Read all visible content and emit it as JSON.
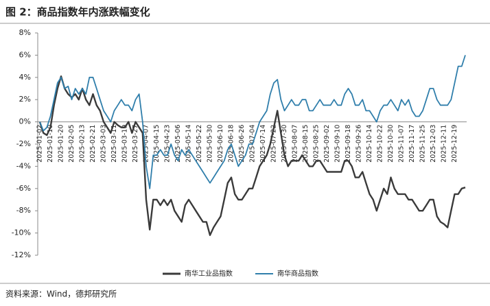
{
  "chart_data": {
    "type": "line",
    "title": "图 2：商品指数年内涨跌幅变化",
    "source": "资料来源：Wind，德邦研究所",
    "categories": [
      "2025-01-02",
      null,
      null,
      "2025-01-10",
      null,
      null,
      "2025-01-20",
      null,
      null,
      "2025-02-05",
      null,
      null,
      "2025-02-13",
      null,
      null,
      "2025-02-21",
      null,
      null,
      "2025-03-03",
      null,
      null,
      "2025-03-11",
      null,
      null,
      "2025-03-19",
      null,
      null,
      "2025-03-27",
      null,
      null,
      "2025-04-07",
      null,
      null,
      "2025-04-15",
      null,
      null,
      "2025-04-23",
      null,
      null,
      "2025-05-06",
      null,
      null,
      "2025-05-14",
      null,
      null,
      "2025-05-22",
      null,
      null,
      "2025-05-30",
      null,
      null,
      "2025-06-10",
      null,
      null,
      "2025-06-18",
      null,
      null,
      "2025-06-26",
      null,
      null,
      "2025-07-04",
      null,
      null,
      "2025-07-14",
      null,
      null,
      "2025-07-22",
      null,
      null,
      "2025-07-30",
      null,
      null,
      "2025-08-07",
      null,
      null,
      "2025-08-15",
      null,
      null,
      "2025-08-25",
      null,
      null,
      "2025-09-02",
      null,
      null,
      "2025-09-10",
      null,
      null,
      "2025-09-18",
      null,
      null,
      "2025-09-26",
      null,
      null,
      "2025-10-14",
      null,
      null,
      "2025-10-22",
      null,
      null,
      "2025-10-30",
      null,
      null,
      "2025-11-07",
      null,
      null,
      "2025-11-17",
      null,
      null,
      "2025-11-25",
      null,
      null,
      "2025-12-03",
      null,
      null,
      "2025-12-11",
      null,
      null,
      "2025-12-19",
      null,
      null,
      null
    ],
    "series": [
      {
        "name": "南华工业品指数",
        "color": "#3a3a3a",
        "values": [
          0,
          -1,
          -1.2,
          -0.5,
          1.5,
          3,
          4.1,
          3,
          2.5,
          2.2,
          2.5,
          2,
          3,
          2,
          1.5,
          2.5,
          1.5,
          1,
          0,
          -0.5,
          -1,
          0,
          -0.3,
          -0.5,
          -0.5,
          0,
          -1,
          0,
          -0.5,
          -1,
          -7,
          -9.7,
          -7,
          -7,
          -7.5,
          -7,
          -7.5,
          -7,
          -8,
          -8.5,
          -9,
          -7.5,
          -7,
          -7.5,
          -8,
          -8.5,
          -9,
          -9,
          -10.2,
          -9.5,
          -9,
          -8.5,
          -7,
          -5.5,
          -5,
          -6.5,
          -7,
          -7,
          -6.5,
          -6,
          -6,
          -5,
          -4,
          -3.5,
          -3,
          -2,
          -0.5,
          1,
          -1,
          -3,
          -4,
          -3.5,
          -3.5,
          -3.5,
          -3,
          -3.5,
          -4,
          -4,
          -3.5,
          -3.5,
          -4,
          -4.5,
          -4.5,
          -4.5,
          -4.5,
          -4.5,
          -3.5,
          -3.5,
          -4,
          -5,
          -5,
          -4.5,
          -5.5,
          -6.5,
          -7,
          -8,
          -7,
          -6,
          -6.5,
          -5,
          -6,
          -6.5,
          -6.5,
          -6.5,
          -7,
          -7,
          -7.5,
          -8,
          -8,
          -7.5,
          -7,
          -7,
          -8.5,
          -9,
          -9.2,
          -9.5,
          -8,
          -6.5,
          -6.5,
          -6,
          -5.9
        ]
      },
      {
        "name": "南华商品指数",
        "color": "#2f7eab",
        "values": [
          0,
          -0.8,
          -0.5,
          0.5,
          2,
          3.5,
          4,
          3,
          3.2,
          2,
          3,
          2.5,
          3,
          2.5,
          4,
          4,
          3,
          2,
          1,
          0.5,
          0,
          1,
          1.5,
          2,
          1.5,
          1.5,
          1,
          2,
          2.5,
          0,
          -4,
          -6,
          -3,
          -3,
          -2.5,
          -3,
          -3,
          -2,
          -3,
          -3.5,
          -2.5,
          -3,
          -2.5,
          -3,
          -3.5,
          -4,
          -4.5,
          -5,
          -5.5,
          -5,
          -4.5,
          -4,
          -3.5,
          -2.5,
          -2,
          -3,
          -4,
          -3.5,
          -3,
          -2,
          -2,
          -1,
          0,
          0.5,
          1,
          2.5,
          3.5,
          3.8,
          2,
          1,
          1.5,
          2,
          1.5,
          1.5,
          2,
          2,
          1,
          1,
          1.5,
          2,
          1.5,
          1.5,
          1.5,
          2,
          1.5,
          1.5,
          2.5,
          3,
          2.5,
          1.5,
          1.5,
          2,
          1,
          1,
          0.5,
          0,
          1,
          1.5,
          1.5,
          2,
          1.5,
          1,
          2,
          1.5,
          2,
          1,
          0.5,
          0.5,
          1,
          2,
          3,
          3,
          2,
          1.5,
          1.5,
          1.5,
          2,
          3.5,
          5,
          5,
          6
        ]
      }
    ],
    "ylim": [
      -12,
      8
    ],
    "yticks": [
      {
        "value": -12,
        "label": "-12%"
      },
      {
        "value": -10,
        "label": "-10%"
      },
      {
        "value": -8,
        "label": "-8%"
      },
      {
        "value": -6,
        "label": "-6%"
      },
      {
        "value": -4,
        "label": "-4%"
      },
      {
        "value": -2,
        "label": "-2%"
      },
      {
        "value": 0,
        "label": "0%"
      },
      {
        "value": 2,
        "label": "2%"
      },
      {
        "value": 4,
        "label": "4%"
      },
      {
        "value": 6,
        "label": "6%"
      },
      {
        "value": 8,
        "label": "8%"
      }
    ],
    "legend": "bottom"
  }
}
